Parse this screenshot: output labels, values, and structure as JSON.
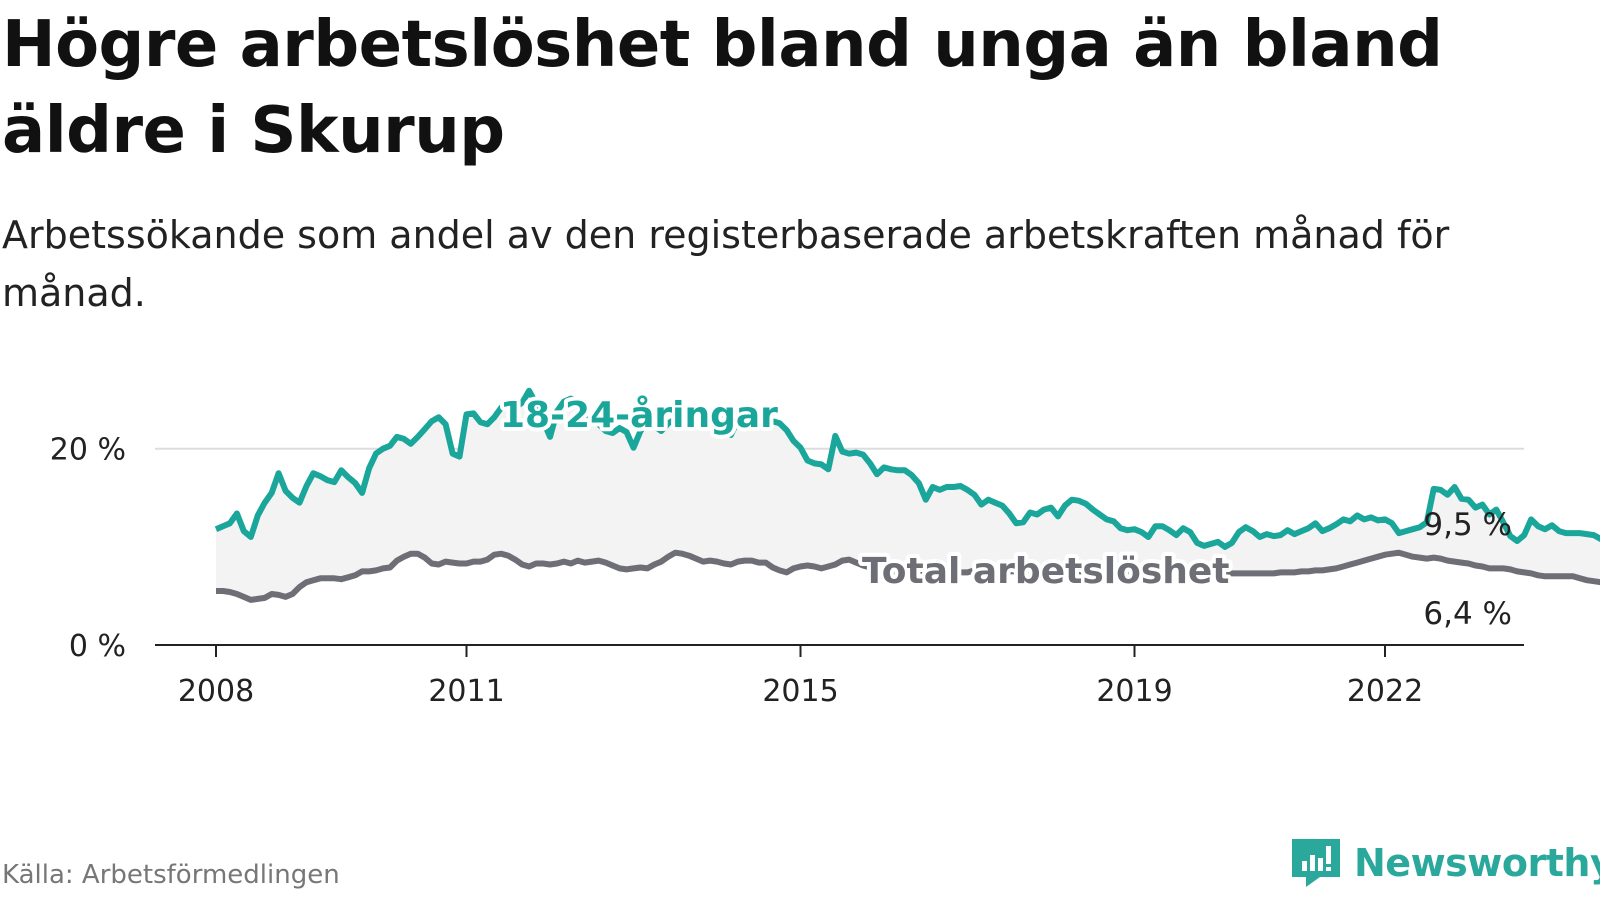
{
  "title": "Högre arbetslöshet bland unga än bland äldre i Skurup",
  "subtitle": "Arbetssökande som andel av den registerbaserade arbetskraften månad för månad.",
  "source": "Källa: Arbetsförmedlingen",
  "brand": "Newsworthy",
  "colors": {
    "youth": "#1aa69a",
    "total": "#6e6e76",
    "band": "#f3f3f3",
    "grid": "#dddddd",
    "axis": "#222222",
    "brand": "#2aa89c"
  },
  "chart_data": {
    "type": "line",
    "title": "Högre arbetslöshet bland unga än bland äldre i Skurup",
    "xlabel": "",
    "ylabel": "",
    "x_ticks": [
      "2008",
      "2011",
      "2015",
      "2019",
      "2022"
    ],
    "y_ticks": [
      "0 %",
      "20 %"
    ],
    "y_tick_values": [
      0,
      20
    ],
    "xlim": [
      2008.0,
      2023.8
    ],
    "ylim": [
      0,
      27
    ],
    "grid": true,
    "band_between_series": true,
    "series": [
      {
        "name": "18-24-åringar",
        "label": "18-24-åringar",
        "end_label": "9,5 %",
        "x_start": 2008.0,
        "step": "month",
        "values": [
          11.8,
          12.1,
          12.4,
          13.4,
          11.6,
          11.0,
          13.2,
          14.5,
          15.5,
          17.5,
          15.7,
          15.0,
          14.5,
          16.2,
          17.5,
          17.2,
          16.8,
          16.6,
          17.8,
          17.1,
          16.5,
          15.5,
          18.0,
          19.5,
          20.0,
          20.3,
          21.2,
          21.0,
          20.5,
          21.2,
          22.0,
          22.8,
          23.2,
          22.5,
          19.5,
          19.2,
          23.5,
          23.6,
          22.7,
          22.5,
          23.2,
          24.2,
          24.5,
          24.2,
          24.7,
          25.9,
          24.6,
          22.9,
          21.2,
          23.8,
          24.8,
          25.1,
          24.8,
          23.5,
          22.8,
          22.5,
          21.8,
          21.6,
          22.1,
          21.7,
          20.1,
          21.8,
          22.8,
          22.3,
          21.8,
          22.6,
          23.0,
          23.3,
          22.9,
          22.5,
          23.1,
          23.5,
          23.3,
          23.0,
          21.4,
          22.9,
          23.6,
          22.7,
          22.4,
          22.5,
          22.8,
          22.6,
          21.9,
          20.8,
          20.1,
          18.8,
          18.5,
          18.4,
          17.9,
          21.3,
          19.7,
          19.5,
          19.6,
          19.4,
          18.5,
          17.4,
          18.1,
          17.9,
          17.8,
          17.8,
          17.3,
          16.5,
          14.8,
          16.1,
          15.8,
          16.1,
          16.1,
          16.2,
          15.8,
          15.3,
          14.3,
          14.8,
          14.5,
          14.2,
          13.4,
          12.4,
          12.5,
          13.5,
          13.3,
          13.8,
          14.0,
          13.1,
          14.2,
          14.8,
          14.7,
          14.4,
          13.8,
          13.3,
          12.8,
          12.6,
          11.9,
          11.7,
          11.8,
          11.5,
          11.0,
          12.1,
          12.1,
          11.7,
          11.2,
          11.9,
          11.5,
          10.4,
          10.1,
          10.3,
          10.5,
          10.0,
          10.4,
          11.5,
          12.0,
          11.6,
          11.0,
          11.3,
          11.1,
          11.2,
          11.7,
          11.3,
          11.6,
          11.9,
          12.4,
          11.6,
          11.9,
          12.3,
          12.8,
          12.6,
          13.2,
          12.8,
          13.0,
          12.7,
          12.8,
          12.4,
          11.4,
          11.6,
          11.8,
          12.0,
          12.5,
          15.9,
          15.8,
          15.3,
          16.1,
          14.9,
          14.8,
          14.0,
          14.3,
          13.3,
          13.8,
          12.5,
          11.1,
          10.6,
          11.2,
          12.8,
          12.1,
          11.8,
          12.2,
          11.6,
          11.4,
          11.4,
          11.4,
          11.3,
          11.2,
          10.8,
          10.5,
          9.5,
          8.9,
          8.3,
          7.9,
          7.8,
          8.8,
          8.7,
          9.2,
          9.4,
          9.5
        ]
      },
      {
        "name": "Total arbetslöshet",
        "label": "Total arbetslöshet",
        "end_label": "6,4 %",
        "x_start": 2008.0,
        "step": "month",
        "values": [
          5.5,
          5.5,
          5.4,
          5.2,
          4.9,
          4.6,
          4.7,
          4.8,
          5.2,
          5.1,
          4.9,
          5.2,
          5.9,
          6.4,
          6.6,
          6.8,
          6.8,
          6.8,
          6.7,
          6.9,
          7.1,
          7.5,
          7.5,
          7.6,
          7.8,
          7.9,
          8.6,
          9.0,
          9.3,
          9.3,
          8.9,
          8.3,
          8.2,
          8.5,
          8.4,
          8.3,
          8.3,
          8.5,
          8.5,
          8.7,
          9.2,
          9.3,
          9.1,
          8.7,
          8.2,
          8.0,
          8.3,
          8.3,
          8.2,
          8.3,
          8.5,
          8.3,
          8.6,
          8.4,
          8.5,
          8.6,
          8.4,
          8.1,
          7.8,
          7.7,
          7.8,
          7.9,
          7.8,
          8.2,
          8.5,
          9.0,
          9.4,
          9.3,
          9.1,
          8.8,
          8.5,
          8.6,
          8.5,
          8.3,
          8.2,
          8.5,
          8.6,
          8.6,
          8.4,
          8.4,
          7.9,
          7.6,
          7.4,
          7.8,
          8.0,
          8.1,
          8.0,
          7.8,
          8.0,
          8.2,
          8.6,
          8.7,
          8.4,
          8.1,
          7.9,
          7.5,
          7.3,
          7.2,
          7.3,
          7.3,
          7.4,
          7.6,
          7.5,
          7.4,
          7.3,
          7.3,
          7.3,
          7.4,
          7.4,
          7.6,
          7.8,
          7.7,
          7.6,
          7.6,
          7.5,
          7.5,
          7.6,
          7.6,
          7.5,
          7.5,
          7.6,
          7.7,
          7.6,
          7.6,
          7.5,
          7.5,
          7.5,
          7.6,
          7.6,
          7.6,
          7.5,
          7.5,
          7.5,
          7.5,
          7.4,
          7.4,
          7.3,
          7.3,
          7.3,
          7.2,
          7.2,
          7.2,
          7.2,
          7.2,
          7.2,
          7.2,
          7.3,
          7.3,
          7.3,
          7.3,
          7.3,
          7.3,
          7.3,
          7.4,
          7.4,
          7.4,
          7.5,
          7.5,
          7.6,
          7.6,
          7.7,
          7.8,
          8.0,
          8.2,
          8.4,
          8.6,
          8.8,
          9.0,
          9.2,
          9.3,
          9.4,
          9.2,
          9.0,
          8.9,
          8.8,
          8.9,
          8.8,
          8.6,
          8.5,
          8.4,
          8.3,
          8.1,
          8.0,
          7.8,
          7.8,
          7.8,
          7.7,
          7.5,
          7.4,
          7.3,
          7.1,
          7.0,
          7.0,
          7.0,
          7.0,
          7.0,
          6.8,
          6.6,
          6.5,
          6.4,
          6.2,
          6.1,
          6.1,
          6.2,
          6.3,
          6.4
        ]
      }
    ]
  }
}
